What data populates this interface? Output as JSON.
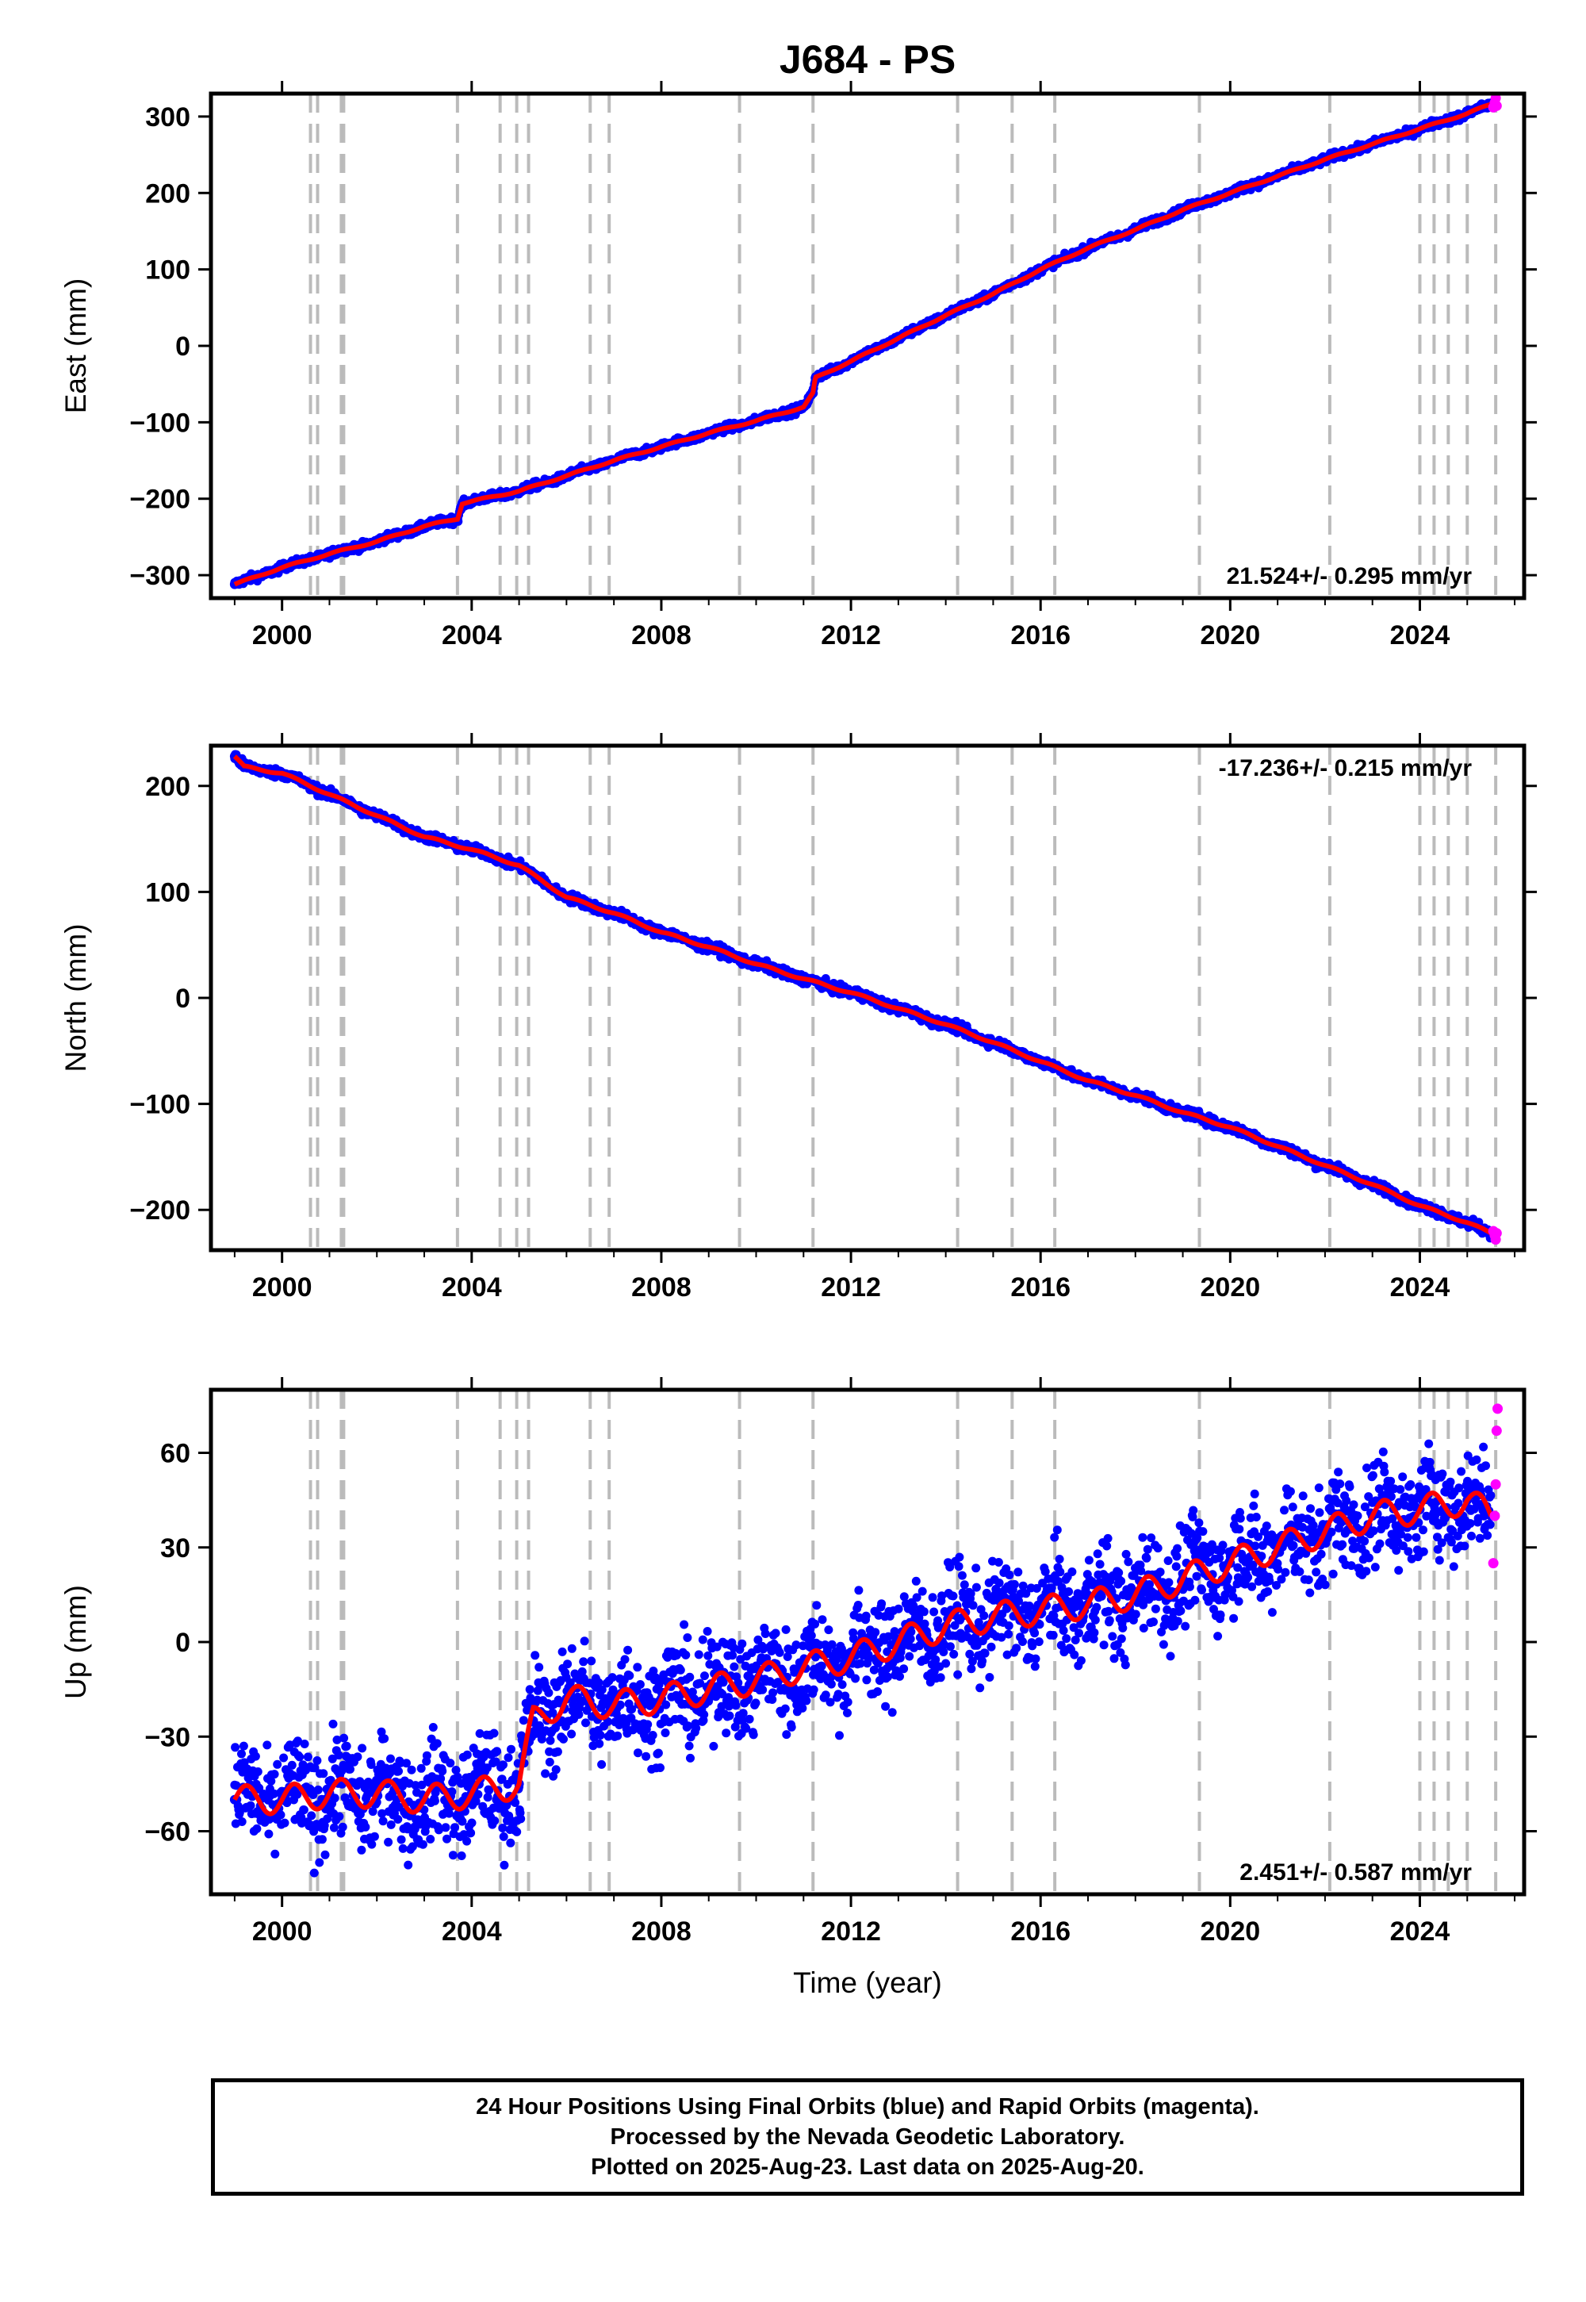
{
  "chart_data": [
    {
      "type": "scatter",
      "panel": "east",
      "title": "J684 - PS",
      "ylabel": "East (mm)",
      "xlabel": "",
      "xlim": [
        1998.5,
        2026.2
      ],
      "ylim": [
        -330,
        330
      ],
      "xticks": [
        "2000",
        "2004",
        "2008",
        "2012",
        "2016",
        "2020",
        "2024"
      ],
      "yticks": [
        "300",
        "200",
        "100",
        "0",
        "−100",
        "−200",
        "−300"
      ],
      "rate_text": "21.524+/- 0.295 mm/yr",
      "rate_position": "bottom-right",
      "grid": false,
      "series": [
        {
          "name": "Final Orbits",
          "color": "#0000ff",
          "x": [
            1999.0,
            2000.0,
            2001.0,
            2002.0,
            2003.0,
            2003.7,
            2003.8,
            2005.0,
            2006.0,
            2007.0,
            2008.0,
            2009.0,
            2010.0,
            2011.0,
            2011.2,
            2011.25,
            2012.0,
            2013.0,
            2014.0,
            2015.0,
            2016.0,
            2017.0,
            2018.0,
            2019.0,
            2020.0,
            2021.0,
            2022.0,
            2023.0,
            2024.0,
            2025.0,
            2025.5
          ],
          "y": [
            -312,
            -290,
            -272,
            -256,
            -236,
            -226,
            -206,
            -190,
            -170,
            -150,
            -132,
            -114,
            -98,
            -80,
            -62,
            -42,
            -20,
            10,
            40,
            68,
            100,
            128,
            152,
            178,
            200,
            222,
            244,
            264,
            284,
            304,
            316
          ]
        },
        {
          "name": "Rapid Orbits",
          "color": "#ff00ff",
          "x": [
            2025.55,
            2025.58,
            2025.6,
            2025.62
          ],
          "y": [
            312,
            318,
            324,
            314
          ]
        }
      ],
      "fit_color": "#ff0000"
    },
    {
      "type": "scatter",
      "panel": "north",
      "title": "",
      "ylabel": "North (mm)",
      "xlabel": "",
      "xlim": [
        1998.5,
        2026.2
      ],
      "ylim": [
        -238,
        238
      ],
      "xticks": [
        "2000",
        "2004",
        "2008",
        "2012",
        "2016",
        "2020",
        "2024"
      ],
      "yticks": [
        "200",
        "100",
        "0",
        "−100",
        "−200"
      ],
      "rate_text": "-17.236+/- 0.215 mm/yr",
      "rate_position": "top-right",
      "grid": false,
      "series": [
        {
          "name": "Final Orbits",
          "color": "#0000ff",
          "x": [
            1999.0,
            1999.2,
            2000.0,
            2001.0,
            2002.0,
            2003.0,
            2004.0,
            2005.0,
            2006.0,
            2007.0,
            2008.0,
            2009.0,
            2010.0,
            2011.0,
            2012.0,
            2013.0,
            2014.0,
            2015.0,
            2016.0,
            2017.0,
            2018.0,
            2019.0,
            2020.0,
            2021.0,
            2022.0,
            2023.0,
            2024.0,
            2025.0,
            2025.5
          ],
          "y": [
            228,
            218,
            212,
            192,
            172,
            152,
            140,
            125,
            95,
            80,
            62,
            48,
            32,
            18,
            5,
            -10,
            -25,
            -42,
            -60,
            -78,
            -92,
            -108,
            -122,
            -140,
            -158,
            -176,
            -196,
            -212,
            -222
          ]
        },
        {
          "name": "Rapid Orbits",
          "color": "#ff00ff",
          "x": [
            2025.55,
            2025.58,
            2025.6,
            2025.62
          ],
          "y": [
            -220,
            -224,
            -228,
            -222
          ]
        }
      ],
      "fit_color": "#ff0000"
    },
    {
      "type": "scatter",
      "panel": "up",
      "title": "",
      "ylabel": "Up (mm)",
      "xlabel": "Time (year)",
      "xlim": [
        1998.5,
        2026.2
      ],
      "ylim": [
        -80,
        80
      ],
      "xticks": [
        "2000",
        "2004",
        "2008",
        "2012",
        "2016",
        "2020",
        "2024"
      ],
      "yticks": [
        "60",
        "30",
        "0",
        "−30",
        "−60"
      ],
      "rate_text": "2.451+/- 0.587 mm/yr",
      "rate_position": "bottom-right",
      "grid": false,
      "series": [
        {
          "name": "Final Orbits",
          "color": "#0000ff",
          "x": [
            1999.0,
            2000.0,
            2001.0,
            2002.0,
            2003.0,
            2004.0,
            2005.0,
            2005.3,
            2006.0,
            2007.0,
            2008.0,
            2009.0,
            2010.0,
            2011.0,
            2012.0,
            2013.0,
            2014.0,
            2015.0,
            2016.0,
            2017.0,
            2018.0,
            2019.0,
            2020.0,
            2021.0,
            2022.0,
            2023.0,
            2024.0,
            2025.0,
            2025.5
          ],
          "y": [
            -50,
            -50,
            -48,
            -48,
            -50,
            -48,
            -45,
            -25,
            -18,
            -20,
            -18,
            -15,
            -12,
            -8,
            -5,
            0,
            5,
            8,
            10,
            12,
            15,
            20,
            25,
            30,
            35,
            40,
            42,
            45,
            40
          ]
        },
        {
          "name": "Rapid Orbits",
          "color": "#ff00ff",
          "x": [
            2025.55,
            2025.58,
            2025.6,
            2025.62,
            2025.64
          ],
          "y": [
            25,
            40,
            50,
            67,
            74
          ]
        }
      ],
      "fit_color": "#ff0000"
    }
  ],
  "equipment_change_years": [
    2000.6,
    2000.75,
    2001.25,
    2001.3,
    2003.7,
    2004.6,
    2004.95,
    2005.2,
    2006.5,
    2006.9,
    2009.65,
    2011.2,
    2014.25,
    2015.4,
    2016.3,
    2019.35,
    2022.1,
    2024.0,
    2024.3,
    2024.6,
    2025.0,
    2025.6
  ],
  "footer": {
    "line1": "24 Hour Positions Using Final Orbits (blue) and Rapid Orbits (magenta).",
    "line2": "Processed by the Nevada Geodetic Laboratory.",
    "line3": "Plotted on 2025-Aug-23. Last data on 2025-Aug-20."
  }
}
